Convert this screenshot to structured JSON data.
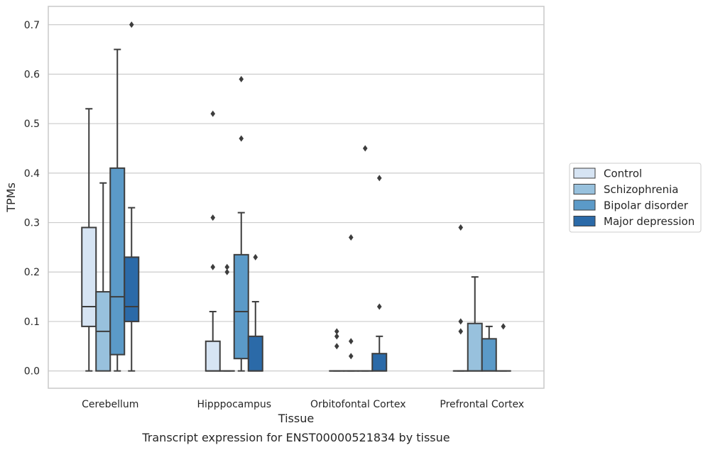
{
  "chart_data": {
    "type": "box",
    "caption": "Transcript expression for ENST00000521834 by tissue",
    "xlabel": "Tissue",
    "ylabel": "TPMs",
    "ylim": [
      -0.035,
      0.737
    ],
    "yticks": [
      0.0,
      0.1,
      0.2,
      0.3,
      0.4,
      0.5,
      0.6,
      0.7
    ],
    "ytick_labels": [
      "0.0",
      "0.1",
      "0.2",
      "0.3",
      "0.4",
      "0.5",
      "0.6",
      "0.7"
    ],
    "grid": "horizontal",
    "legend_position": "right",
    "categories": [
      "Cerebellum",
      "Hipppocampus",
      "Orbitofontal Cortex",
      "Prefrontal Cortex"
    ],
    "series": [
      {
        "name": "Control",
        "color": "#d6e4f3",
        "boxes": [
          {
            "whislo": 0.0,
            "q1": 0.09,
            "med": 0.13,
            "q3": 0.29,
            "whishi": 0.53,
            "fliers": []
          },
          {
            "whislo": 0.0,
            "q1": 0.0,
            "med": 0.0,
            "q3": 0.06,
            "whishi": 0.12,
            "fliers": [
              0.21,
              0.31,
              0.52
            ]
          },
          {
            "whislo": 0.0,
            "q1": 0.0,
            "med": 0.0,
            "q3": 0.0,
            "whishi": 0.0,
            "fliers": [
              0.05,
              0.07,
              0.08
            ]
          },
          {
            "whislo": 0.0,
            "q1": 0.0,
            "med": 0.0,
            "q3": 0.0,
            "whishi": 0.0,
            "fliers": [
              0.08,
              0.1,
              0.29
            ]
          }
        ]
      },
      {
        "name": "Schizophrenia",
        "color": "#98c1dd",
        "boxes": [
          {
            "whislo": 0.0,
            "q1": 0.0,
            "med": 0.08,
            "q3": 0.16,
            "whishi": 0.38,
            "fliers": []
          },
          {
            "whislo": 0.0,
            "q1": 0.0,
            "med": 0.0,
            "q3": 0.0,
            "whishi": 0.0,
            "fliers": [
              0.2,
              0.21
            ]
          },
          {
            "whislo": 0.0,
            "q1": 0.0,
            "med": 0.0,
            "q3": 0.0,
            "whishi": 0.0,
            "fliers": [
              0.03,
              0.06,
              0.27
            ]
          },
          {
            "whislo": 0.0,
            "q1": 0.0,
            "med": 0.0,
            "q3": 0.096,
            "whishi": 0.19,
            "fliers": []
          }
        ]
      },
      {
        "name": "Bipolar disorder",
        "color": "#5b9ac8",
        "boxes": [
          {
            "whislo": 0.0,
            "q1": 0.033,
            "med": 0.15,
            "q3": 0.41,
            "whishi": 0.65,
            "fliers": []
          },
          {
            "whislo": 0.0,
            "q1": 0.025,
            "med": 0.12,
            "q3": 0.235,
            "whishi": 0.32,
            "fliers": [
              0.47,
              0.59
            ]
          },
          {
            "whislo": 0.0,
            "q1": 0.0,
            "med": 0.0,
            "q3": 0.0,
            "whishi": 0.0,
            "fliers": [
              0.45
            ]
          },
          {
            "whislo": 0.0,
            "q1": 0.0,
            "med": 0.0,
            "q3": 0.065,
            "whishi": 0.09,
            "fliers": []
          }
        ]
      },
      {
        "name": "Major depression",
        "color": "#2b6aa8",
        "boxes": [
          {
            "whislo": 0.0,
            "q1": 0.1,
            "med": 0.13,
            "q3": 0.23,
            "whishi": 0.33,
            "fliers": [
              0.7
            ]
          },
          {
            "whislo": 0.0,
            "q1": 0.0,
            "med": 0.0,
            "q3": 0.07,
            "whishi": 0.14,
            "fliers": [
              0.23
            ]
          },
          {
            "whislo": 0.0,
            "q1": 0.0,
            "med": 0.0,
            "q3": 0.035,
            "whishi": 0.07,
            "fliers": [
              0.13,
              0.39
            ]
          },
          {
            "whislo": 0.0,
            "q1": 0.0,
            "med": 0.0,
            "q3": 0.0,
            "whishi": 0.0,
            "fliers": [
              0.09
            ]
          }
        ]
      }
    ]
  }
}
